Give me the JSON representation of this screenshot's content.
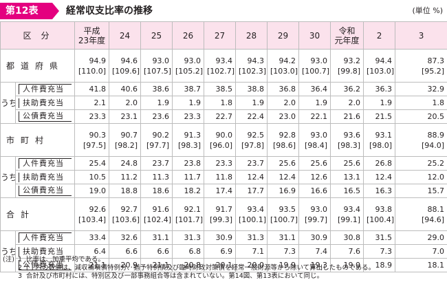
{
  "title": {
    "badge": "第12表",
    "text": "経常収支比率の推移",
    "unit": "(単位 %)"
  },
  "table": {
    "header_kubun": "区分",
    "columns": [
      "平成\n23年度",
      "24",
      "25",
      "26",
      "27",
      "28",
      "29",
      "30",
      "令和\n元年度",
      "2",
      "3"
    ],
    "uchi": "うち",
    "groups": [
      {
        "label": "都道府県",
        "main": [
          [
            "94.9",
            "[110.0]"
          ],
          [
            "94.6",
            "[109.6]"
          ],
          [
            "93.0",
            "[107.5]"
          ],
          [
            "93.0",
            "[105.2]"
          ],
          [
            "93.4",
            "[102.7]"
          ],
          [
            "94.3",
            "[102.3]"
          ],
          [
            "94.2",
            "[103.0]"
          ],
          [
            "93.0",
            "[100.7]"
          ],
          [
            "93.2",
            "[99.8]"
          ],
          [
            "94.4",
            "[103.0]"
          ],
          [
            "87.3",
            "[95.2]"
          ]
        ],
        "subs": [
          {
            "label": "人件費充当",
            "values": [
              "41.8",
              "40.6",
              "38.6",
              "38.7",
              "38.5",
              "38.8",
              "36.8",
              "36.4",
              "36.2",
              "36.3",
              "32.9"
            ]
          },
          {
            "label": "扶助費充当",
            "values": [
              "2.1",
              "2.0",
              "1.9",
              "1.9",
              "1.8",
              "1.9",
              "2.0",
              "1.9",
              "2.0",
              "1.9",
              "1.8"
            ]
          },
          {
            "label": "公債費充当",
            "values": [
              "23.3",
              "23.1",
              "23.6",
              "23.3",
              "22.7",
              "22.4",
              "23.0",
              "22.1",
              "21.6",
              "21.5",
              "20.5"
            ]
          }
        ]
      },
      {
        "label": "市町村",
        "main": [
          [
            "90.3",
            "[97.5]"
          ],
          [
            "90.7",
            "[98.2]"
          ],
          [
            "90.2",
            "[97.7]"
          ],
          [
            "91.3",
            "[98.3]"
          ],
          [
            "90.0",
            "[96.0]"
          ],
          [
            "92.5",
            "[97.8]"
          ],
          [
            "92.8",
            "[98.6]"
          ],
          [
            "93.0",
            "[98.4]"
          ],
          [
            "93.6",
            "[98.3]"
          ],
          [
            "93.1",
            "[98.0]"
          ],
          [
            "88.9",
            "[94.0]"
          ]
        ],
        "subs": [
          {
            "label": "人件費充当",
            "values": [
              "25.4",
              "24.8",
              "23.7",
              "23.8",
              "23.3",
              "23.7",
              "25.6",
              "25.6",
              "25.6",
              "26.8",
              "25.2"
            ]
          },
          {
            "label": "扶助費充当",
            "values": [
              "10.5",
              "11.2",
              "11.3",
              "11.7",
              "11.8",
              "12.4",
              "12.4",
              "12.6",
              "13.1",
              "12.4",
              "12.0"
            ]
          },
          {
            "label": "公債費充当",
            "values": [
              "19.0",
              "18.8",
              "18.6",
              "18.2",
              "17.4",
              "17.7",
              "16.9",
              "16.6",
              "16.5",
              "16.3",
              "15.7"
            ]
          }
        ]
      },
      {
        "label": "合計",
        "main": [
          [
            "92.6",
            "[103.4]"
          ],
          [
            "92.7",
            "[103.6]"
          ],
          [
            "91.6",
            "[102.4]"
          ],
          [
            "92.1",
            "[101.7]"
          ],
          [
            "91.7",
            "[99.3]"
          ],
          [
            "93.4",
            "[100.1]"
          ],
          [
            "93.5",
            "[100.7]"
          ],
          [
            "93.0",
            "[99.7]"
          ],
          [
            "93.4",
            "[99.1]"
          ],
          [
            "93.8",
            "[100.4]"
          ],
          [
            "88.1",
            "[94.6]"
          ]
        ],
        "subs": [
          {
            "label": "人件費充当",
            "values": [
              "33.4",
              "32.6",
              "31.1",
              "31.3",
              "30.9",
              "31.3",
              "31.1",
              "30.9",
              "30.8",
              "31.5",
              "29.0"
            ]
          },
          {
            "label": "扶助費充当",
            "values": [
              "6.4",
              "6.6",
              "6.6",
              "6.8",
              "6.9",
              "7.1",
              "7.3",
              "7.4",
              "7.6",
              "7.3",
              "7.0"
            ]
          },
          {
            "label": "公債費充当",
            "values": [
              "21.1",
              "20.9",
              "21.1",
              "20.8",
              "20.1",
              "20.0",
              "19.9",
              "19.3",
              "19.0",
              "18.9",
              "18.1"
            ]
          }
        ]
      }
    ]
  },
  "notes": [
    {
      "head": "(注)",
      "num": "1",
      "text": "比率は、加重平均である。"
    },
    {
      "head": "",
      "num": "2",
      "text": "[ ] 内の数値は、減収補塡債特例分、猶予特例債及び臨時財政対策債を経常一般財源等から除いて算出したものである。"
    },
    {
      "head": "",
      "num": "3",
      "text": "合計及び市町村には、特別区及び一部事務組合等は含まれていない。第14図、第13表において同じ。"
    }
  ]
}
